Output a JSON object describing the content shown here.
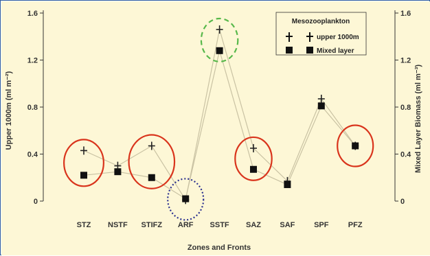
{
  "chart_data": {
    "type": "scatter",
    "background": "#fdf7d6",
    "categories": [
      "STZ",
      "NSTF",
      "STIFZ",
      "ARF",
      "SSTF",
      "SAZ",
      "SAF",
      "SPF",
      "PFZ"
    ],
    "xlabel": "Zones and Fronts",
    "ylabel_left": "Upper 1000m (ml m⁻²)",
    "ylabel_right": "Mixed Layer Biomass (ml m⁻³)",
    "ylim": [
      0,
      1.6
    ],
    "yticks": [
      "0",
      "0.4",
      "0.8",
      "1.2",
      "1.6"
    ],
    "legend": {
      "title": "Mesozooplankton",
      "position": "top-right",
      "items": [
        "upper 1000m",
        "Mixed layer"
      ]
    },
    "series": [
      {
        "name": "upper 1000m",
        "marker": "plus",
        "color": "#222222",
        "values": [
          0.43,
          0.3,
          0.47,
          0.01,
          1.46,
          0.45,
          0.17,
          0.87,
          0.47
        ]
      },
      {
        "name": "Mixed layer",
        "marker": "square",
        "color": "#111111",
        "values": [
          0.22,
          0.25,
          0.2,
          0.02,
          1.28,
          0.27,
          0.14,
          0.81,
          0.47
        ]
      }
    ],
    "line_color": "#c9c2a3",
    "annotations": [
      {
        "shape": "ellipse",
        "style": "solid",
        "color": "#d9341c",
        "category": "STZ"
      },
      {
        "shape": "ellipse",
        "style": "solid",
        "color": "#d9341c",
        "category": "STIFZ"
      },
      {
        "shape": "ellipse",
        "style": "dotted",
        "color": "#2a2f8f",
        "category": "ARF"
      },
      {
        "shape": "ellipse",
        "style": "dashed",
        "color": "#57b84a",
        "category": "SSTF"
      },
      {
        "shape": "ellipse",
        "style": "solid",
        "color": "#d9341c",
        "category": "SAZ"
      },
      {
        "shape": "ellipse",
        "style": "solid",
        "color": "#d9341c",
        "category": "PFZ"
      }
    ]
  }
}
